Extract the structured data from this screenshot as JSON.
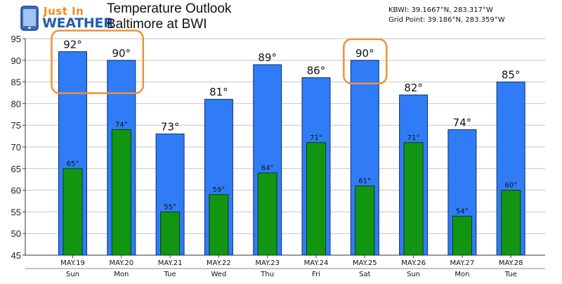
{
  "header": {
    "logo_text_line1": "Just In",
    "logo_text_line2": "WEATHER",
    "title_line1": "Temperature Outlook",
    "title_line2": "Baltimore at BWI",
    "station": "KBWI: 39.1667°N, 283.317°W",
    "grid_point": "Grid Point: 39.186°N, 283.359°W"
  },
  "colors": {
    "high_bar": "#2f7cf6",
    "low_bar": "#129612",
    "highlight_box": "#f0913a"
  },
  "chart_data": {
    "type": "bar",
    "title": "Temperature Outlook",
    "subtitle": "Baltimore at BWI",
    "categories": [
      "MAY.19",
      "MAY.20",
      "MAY.21",
      "MAY.22",
      "MAY.23",
      "MAY.24",
      "MAY.25",
      "MAY.26",
      "MAY.27",
      "MAY.28"
    ],
    "day_names": [
      "Sun",
      "Mon",
      "Tue",
      "Wed",
      "Thu",
      "Fri",
      "Sat",
      "Sun",
      "Mon",
      "Tue"
    ],
    "series": [
      {
        "values": [
          92,
          90,
          73,
          81,
          89,
          86,
          90,
          82,
          74,
          85
        ],
        "labels": [
          "92°",
          "90°",
          "73°",
          "81°",
          "89°",
          "86°",
          "90°",
          "82°",
          "74°",
          "85°"
        ],
        "color": "#2f7cf6"
      },
      {
        "values": [
          65,
          74,
          55,
          59,
          64,
          71,
          61,
          71,
          54,
          60
        ],
        "labels": [
          "65°",
          "74°",
          "55°",
          "59°",
          "64°",
          "71°",
          "61°",
          "71°",
          "54°",
          "60°"
        ],
        "color": "#129612"
      }
    ],
    "ylim": [
      45,
      95
    ],
    "yticks": [
      "45",
      "50",
      "55",
      "60",
      "65",
      "70",
      "75",
      "80",
      "85",
      "90",
      "95"
    ],
    "xlabel": "",
    "ylabel": "",
    "grid": true,
    "legend": "none",
    "highlighted_categories": [
      [
        0,
        1
      ],
      [
        6,
        6
      ]
    ]
  }
}
